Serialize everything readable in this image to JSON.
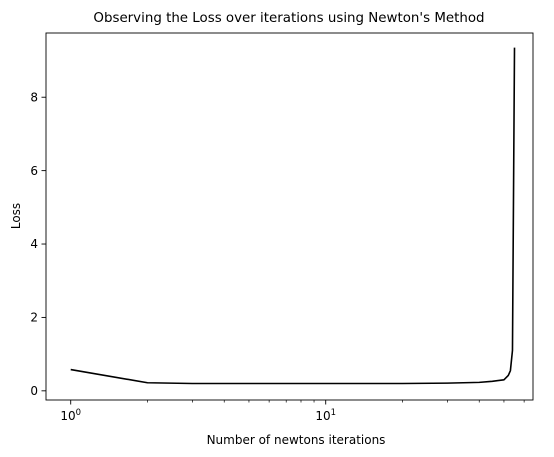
{
  "chart_data": {
    "type": "line",
    "title": "Observing the Loss over iterations using Newton's Method",
    "xlabel": "Number of newtons iterations",
    "ylabel": "Loss",
    "xscale": "log",
    "xlim": [
      0.8,
      65
    ],
    "ylim": [
      -0.25,
      9.75
    ],
    "x_major_ticks": [
      1,
      10
    ],
    "x_tick_labels": [
      {
        "base": "10",
        "exp": "0"
      },
      {
        "base": "10",
        "exp": "1"
      }
    ],
    "x_minor_ticks": [
      2,
      3,
      4,
      5,
      6,
      7,
      8,
      9,
      20,
      30,
      40,
      50,
      60
    ],
    "y_ticks": [
      0,
      2,
      4,
      6,
      8
    ],
    "y_tick_labels": [
      "0",
      "2",
      "4",
      "6",
      "8"
    ],
    "grid": false,
    "line_color": "#000000",
    "series": [
      {
        "x": [
          1,
          2,
          3,
          4,
          6,
          10,
          20,
          30,
          40,
          45,
          50,
          52,
          53,
          54,
          55
        ],
        "y": [
          0.58,
          0.22,
          0.2,
          0.2,
          0.2,
          0.2,
          0.2,
          0.21,
          0.23,
          0.26,
          0.3,
          0.42,
          0.55,
          1.1,
          9.35
        ]
      }
    ]
  }
}
